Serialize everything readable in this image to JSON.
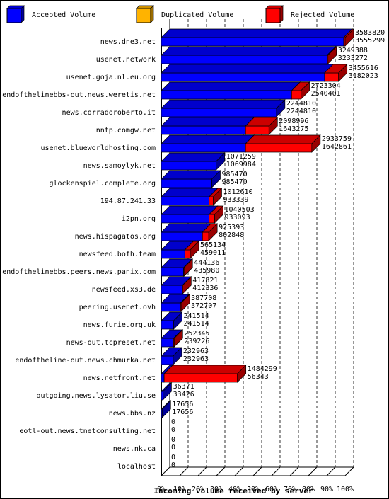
{
  "chart_data": {
    "type": "bar",
    "orientation": "horizontal",
    "stacked": true,
    "title": "",
    "xlabel": "Incoming volume received by server",
    "ylabel": "",
    "xlim": [
      0,
      100
    ],
    "x_ticks": [
      "0%",
      "10%",
      "20%",
      "30%",
      "40%",
      "50%",
      "60%",
      "70%",
      "80%",
      "90%",
      "100%"
    ],
    "grid": true,
    "legend_position": "top",
    "legend": [
      {
        "name": "Accepted Volume",
        "color": "#0000ff"
      },
      {
        "name": "Duplicated Volume",
        "color": "#ffb300"
      },
      {
        "name": "Rejected Volume",
        "color": "#ff0000"
      }
    ],
    "categories": [
      "news.dne3.net",
      "usenet.network",
      "usenet.goja.nl.eu.org",
      "endofthelinebbs-out.news.weretis.net",
      "news.corradoroberto.it",
      "nntp.comgw.net",
      "usenet.blueworldhosting.com",
      "news.samoylyk.net",
      "glockenspiel.complete.org",
      "194.87.241.33",
      "i2pn.org",
      "news.hispagatos.org",
      "newsfeed.bofh.team",
      "endofthelinebbs.peers.news.panix.com",
      "newsfeed.xs3.de",
      "peering.usenet.ovh",
      "news.furie.org.uk",
      "news-out.tcpreset.net",
      "endoftheline-out.news.chmurka.net",
      "news.netfront.net",
      "outgoing.news.lysator.liu.se",
      "news.bbs.nz",
      "eotl-out.news.tnetconsulting.net",
      "news.nk.ca",
      "localhost"
    ],
    "total": [
      "3583820",
      "3249388",
      "3455616",
      "2723304",
      "2244810",
      "2098996",
      "2933759",
      "1071259",
      "985470",
      "1012610",
      "1040503",
      "925393",
      "565134",
      "444136",
      "417821",
      "387708",
      "241514",
      "252345",
      "232963",
      "1484299",
      "36371",
      "17656",
      "0",
      "0",
      "0"
    ],
    "accepted": [
      "3555299",
      "3233272",
      "3182023",
      "2540401",
      "2244810",
      "1643275",
      "1642861",
      "1069984",
      "985470",
      "933339",
      "933093",
      "802848",
      "459011",
      "435980",
      "412336",
      "372707",
      "241514",
      "239226",
      "232963",
      "56343",
      "33426",
      "17656",
      "0",
      "0",
      "0"
    ],
    "max_volume": 3583820
  }
}
